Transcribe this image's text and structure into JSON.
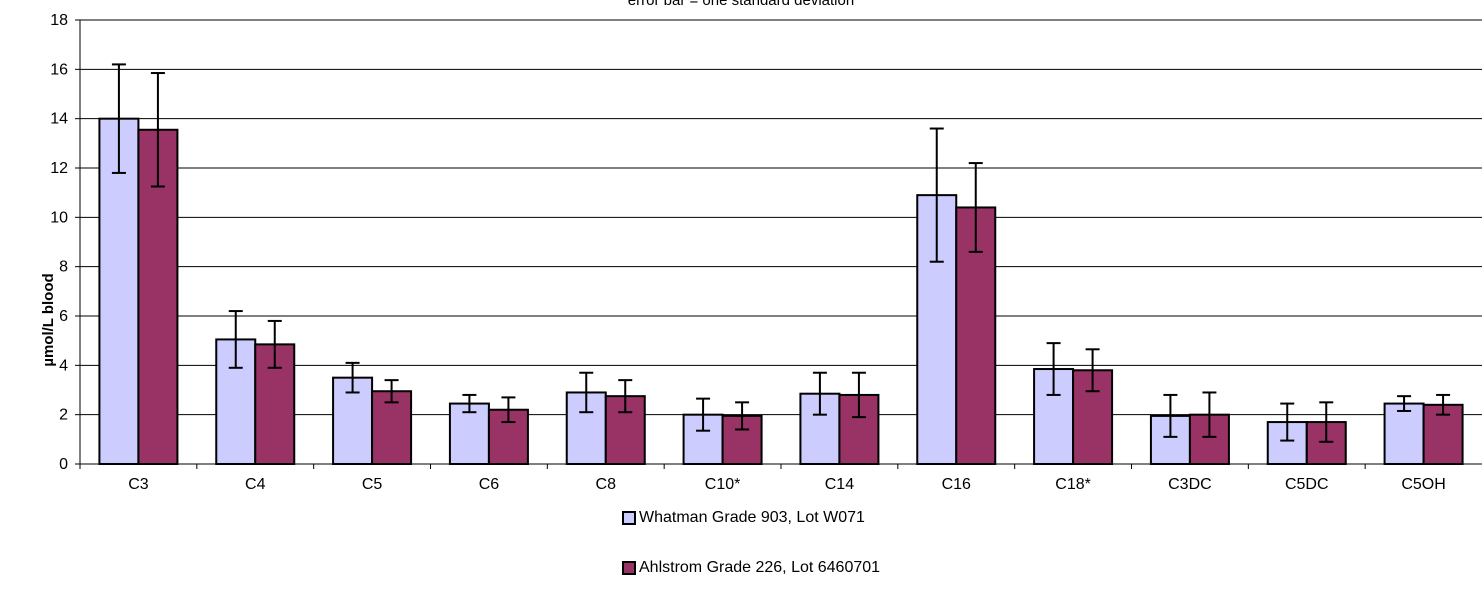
{
  "chart_data": {
    "type": "bar",
    "subtitle": "error bar = one standard deviation",
    "xlabel": "",
    "ylabel": "µmol/L blood",
    "ylim": [
      0,
      18
    ],
    "yticks": [
      0,
      2,
      4,
      6,
      8,
      10,
      12,
      14,
      16,
      18
    ],
    "grid": true,
    "legend_position": "bottom",
    "categories": [
      "C3",
      "C4",
      "C5",
      "C6",
      "C8",
      "C10*",
      "C14",
      "C16",
      "C18*",
      "C3DC",
      "C5DC",
      "C5OH"
    ],
    "series": [
      {
        "name": "Whatman Grade 903, Lot W071",
        "color": "#ccccff",
        "values": [
          14.0,
          5.05,
          3.5,
          2.45,
          2.9,
          2.0,
          2.85,
          10.9,
          3.85,
          1.95,
          1.7,
          2.45
        ],
        "error": [
          2.2,
          1.15,
          0.6,
          0.35,
          0.8,
          0.65,
          0.85,
          2.7,
          1.05,
          0.85,
          0.75,
          0.3
        ]
      },
      {
        "name": "Ahlstrom Grade 226, Lot 6460701",
        "color": "#993366",
        "values": [
          13.55,
          4.85,
          2.95,
          2.2,
          2.75,
          1.95,
          2.8,
          10.4,
          3.8,
          2.0,
          1.7,
          2.4
        ],
        "error": [
          2.3,
          0.95,
          0.45,
          0.5,
          0.65,
          0.55,
          0.9,
          1.8,
          0.85,
          0.9,
          0.8,
          0.4
        ]
      }
    ]
  }
}
